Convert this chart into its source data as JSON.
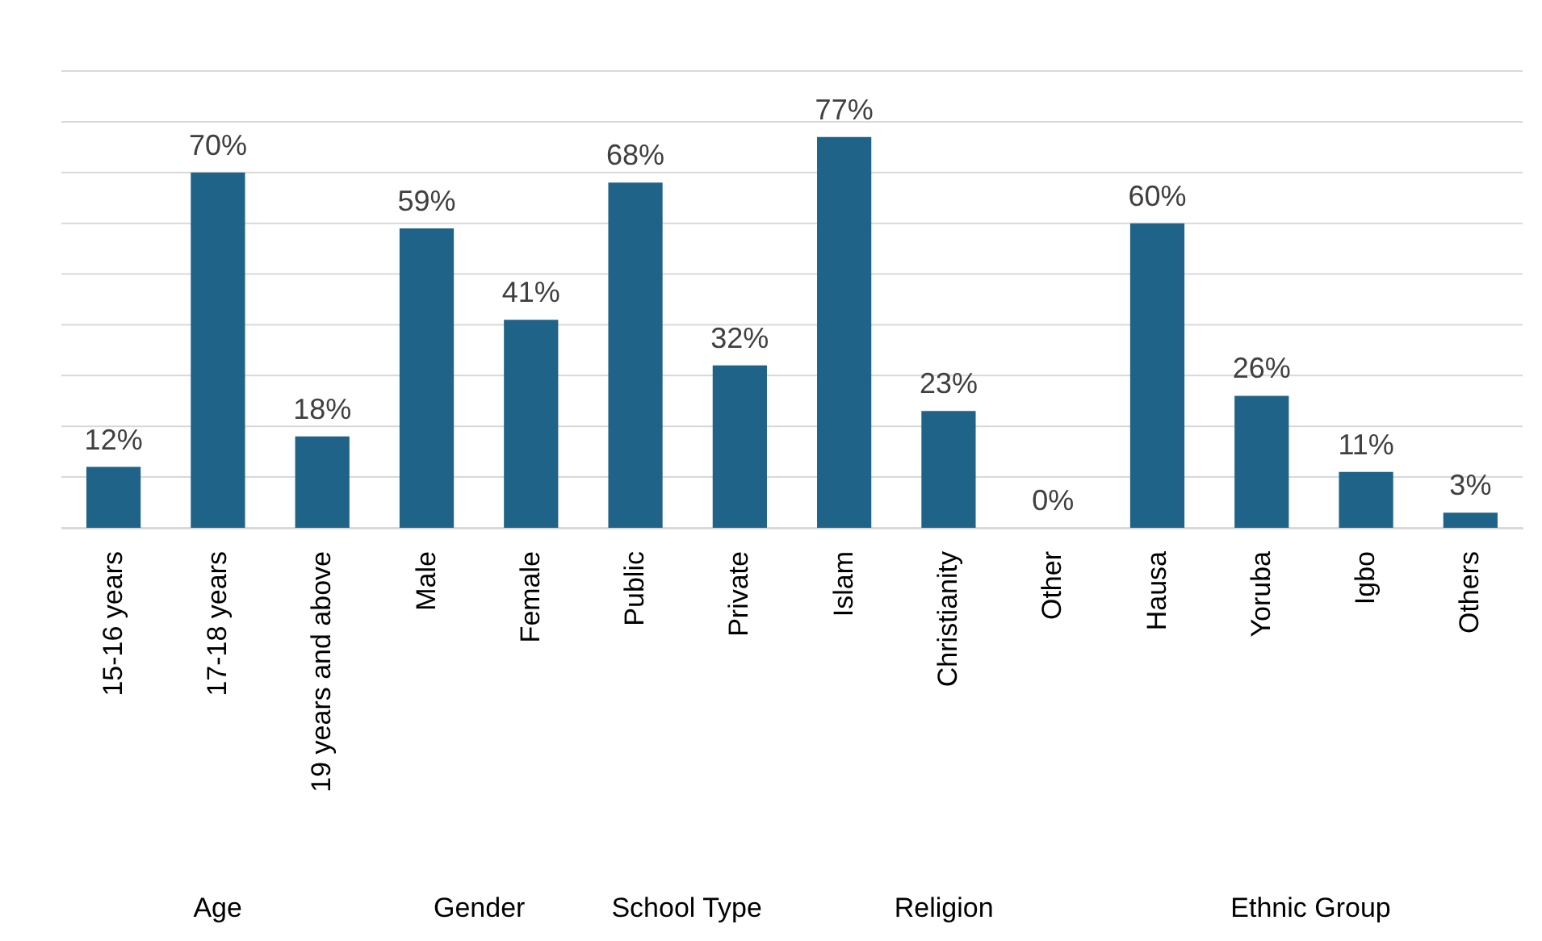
{
  "chart_data": {
    "type": "bar",
    "categories": [
      "15-16 years",
      "17-18 years",
      "19 years and above",
      "Male",
      "Female",
      "Public",
      "Private",
      "Islam",
      "Christianity",
      "Other",
      "Hausa",
      "Yoruba",
      "Igbo",
      "Others"
    ],
    "values": [
      12,
      70,
      18,
      59,
      41,
      68,
      32,
      77,
      23,
      0,
      60,
      26,
      11,
      3
    ],
    "value_labels": [
      "12%",
      "70%",
      "18%",
      "59%",
      "41%",
      "68%",
      "32%",
      "77%",
      "23%",
      "0%",
      "60%",
      "26%",
      "11%",
      "3%"
    ],
    "color": "#1f6388",
    "ylim": [
      0,
      90
    ],
    "yticks": [
      {
        "value": 0,
        "label": null
      },
      {
        "value": 10,
        "label": null
      },
      {
        "value": 20,
        "label": null
      },
      {
        "value": 30,
        "label": null
      },
      {
        "value": 40,
        "label": null
      },
      {
        "value": 50,
        "label": null
      },
      {
        "value": 60,
        "label": null
      },
      {
        "value": 70,
        "label": null
      },
      {
        "value": 80,
        "label": null
      },
      {
        "value": 90,
        "label": null
      }
    ],
    "tick_labels": "x",
    "grid": "y",
    "annotations": [
      "Age",
      "Gender",
      "School Type",
      "Religion",
      "Ethnic Group"
    ]
  }
}
